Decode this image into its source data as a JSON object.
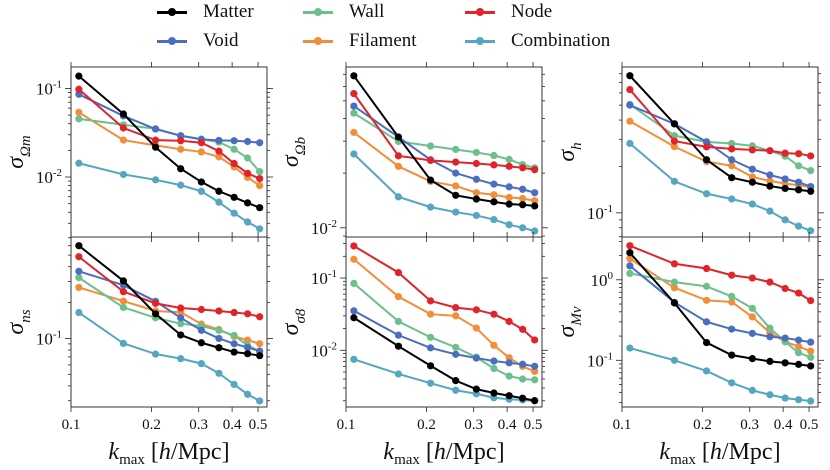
{
  "chart_data": {
    "type": "line",
    "layout": "2x3 grid of log-log panels, shared x-axis per column",
    "legend": {
      "placement": "top-center",
      "entries": [
        "Matter",
        "Void",
        "Wall",
        "Filament",
        "Node",
        "Combination"
      ]
    },
    "colors": {
      "Matter": "#000000",
      "Void": "#4a6fc0",
      "Wall": "#6dbf8c",
      "Filament": "#f28e3a",
      "Node": "#e0242a",
      "Combination": "#55a6c0"
    },
    "xlabel": "k_max [h/Mpc]",
    "xscale": "log",
    "xlim": [
      0.1,
      0.54
    ],
    "xticks": [
      0.1,
      0.2,
      0.3,
      0.4,
      0.5
    ],
    "xtick_labels": [
      "0.1",
      "0.2",
      "0.3",
      "0.4",
      "0.5"
    ],
    "x": [
      0.107,
      0.157,
      0.207,
      0.257,
      0.307,
      0.357,
      0.407,
      0.457,
      0.507
    ],
    "panels": [
      {
        "id": "omega_m",
        "ylabel_base": "σ",
        "ylabel_sub": "Ωm",
        "yscale": "log",
        "ylim": [
          0.0021,
          0.175
        ],
        "yticks": [
          {
            "value": 0.1,
            "label_base": "10",
            "label_exp": "-1"
          },
          {
            "value": 0.01,
            "label_base": "10",
            "label_exp": "-2"
          }
        ],
        "series": [
          {
            "name": "Matter",
            "values": [
              0.138,
              0.0515,
              0.0217,
              0.0124,
              0.0088,
              0.0069,
              0.0059,
              0.0051,
              0.0045
            ]
          },
          {
            "name": "Void",
            "values": [
              0.086,
              0.049,
              0.0348,
              0.0292,
              0.0266,
              0.0259,
              0.0257,
              0.0252,
              0.0244
            ]
          },
          {
            "name": "Wall",
            "values": [
              0.0454,
              0.0389,
              0.0351,
              0.0294,
              0.0268,
              0.0248,
              0.0206,
              0.0164,
              0.0115
            ]
          },
          {
            "name": "Filament",
            "values": [
              0.0538,
              0.0261,
              0.0228,
              0.0206,
              0.0192,
              0.0169,
              0.013,
              0.0099,
              0.008
            ]
          },
          {
            "name": "Node",
            "values": [
              0.098,
              0.0358,
              0.0261,
              0.0257,
              0.0244,
              0.0196,
              0.0142,
              0.011,
              0.0096
            ]
          },
          {
            "name": "Combination",
            "values": [
              0.0143,
              0.0107,
              0.0093,
              0.0081,
              0.0069,
              0.0052,
              0.0039,
              0.0031,
              0.0026
            ]
          }
        ]
      },
      {
        "id": "omega_b",
        "ylabel_base": "σ",
        "ylabel_sub": "Ωb",
        "yscale": "log",
        "ylim": [
          0.0089,
          0.0768
        ],
        "yticks": [
          {
            "value": 0.01,
            "label_base": "10",
            "label_exp": "-2"
          }
        ],
        "series": [
          {
            "name": "Matter",
            "values": [
              0.0687,
              0.0316,
              0.0183,
              0.0151,
              0.0144,
              0.0139,
              0.0135,
              0.0134,
              0.0132
            ]
          },
          {
            "name": "Void",
            "values": [
              0.0468,
              0.0316,
              0.0237,
              0.02,
              0.0185,
              0.0174,
              0.0168,
              0.0163,
              0.0156
            ]
          },
          {
            "name": "Wall",
            "values": [
              0.0428,
              0.0299,
              0.0282,
              0.027,
              0.026,
              0.025,
              0.0238,
              0.0223,
              0.0214
            ]
          },
          {
            "name": "Filament",
            "values": [
              0.0335,
              0.0218,
              0.018,
              0.017,
              0.0156,
              0.0152,
              0.0147,
              0.0145,
              0.0141
            ]
          },
          {
            "name": "Node",
            "values": [
              0.0548,
              0.0249,
              0.0235,
              0.023,
              0.0226,
              0.0222,
              0.0218,
              0.0214,
              0.0209
            ]
          },
          {
            "name": "Combination",
            "values": [
              0.0255,
              0.0148,
              0.013,
              0.0122,
              0.0117,
              0.0111,
              0.0104,
              0.01,
              0.0096
            ]
          }
        ]
      },
      {
        "id": "h",
        "ylabel_base": "σ",
        "ylabel_sub": "h",
        "yscale": "log",
        "ylim": [
          0.0697,
          0.884
        ],
        "yticks": [
          {
            "value": 0.1,
            "label_base": "10",
            "label_exp": "-1"
          }
        ],
        "series": [
          {
            "name": "Matter",
            "values": [
              0.776,
              0.378,
              0.221,
              0.169,
              0.158,
              0.149,
              0.144,
              0.141,
              0.138
            ]
          },
          {
            "name": "Void",
            "values": [
              0.5,
              0.378,
              0.289,
              0.221,
              0.192,
              0.176,
              0.166,
              0.158,
              0.148
            ]
          },
          {
            "name": "Wall",
            "values": [
              0.505,
              0.317,
              0.289,
              0.282,
              0.272,
              0.253,
              0.233,
              0.202,
              0.188
            ]
          },
          {
            "name": "Filament",
            "values": [
              0.393,
              0.269,
              0.215,
              0.202,
              0.171,
              0.161,
              0.155,
              0.151,
              0.147
            ]
          },
          {
            "name": "Node",
            "values": [
              0.631,
              0.292,
              0.268,
              0.26,
              0.256,
              0.253,
              0.244,
              0.242,
              0.234
            ]
          },
          {
            "name": "Combination",
            "values": [
              0.282,
              0.16,
              0.133,
              0.123,
              0.114,
              0.1026,
              0.0901,
              0.082,
              0.0766
            ]
          }
        ]
      },
      {
        "id": "n_s",
        "ylabel_base": "σ",
        "ylabel_sub": "ns",
        "yscale": "log",
        "ylim": [
          0.0266,
          0.71
        ],
        "yticks": [
          {
            "value": 0.1,
            "label_base": "10",
            "label_exp": "-1"
          }
        ],
        "series": [
          {
            "name": "Matter",
            "values": [
              0.6,
              0.304,
              0.161,
              0.107,
              0.092,
              0.0836,
              0.0769,
              0.0745,
              0.0717
            ]
          },
          {
            "name": "Void",
            "values": [
              0.366,
              0.28,
              0.205,
              0.149,
              0.117,
              0.1,
              0.0903,
              0.0841,
              0.0784
            ]
          },
          {
            "name": "Wall",
            "values": [
              0.324,
              0.182,
              0.149,
              0.133,
              0.127,
              0.117,
              0.106,
              0.0875,
              0.078
            ]
          },
          {
            "name": "Filament",
            "values": [
              0.268,
              0.206,
              0.17,
              0.166,
              0.132,
              0.119,
              0.104,
              0.0968,
              0.0903
            ]
          },
          {
            "name": "Node",
            "values": [
              0.485,
              0.247,
              0.197,
              0.18,
              0.175,
              0.17,
              0.165,
              0.161,
              0.152
            ]
          },
          {
            "name": "Combination",
            "values": [
              0.165,
              0.0909,
              0.074,
              0.0677,
              0.0615,
              0.051,
              0.0411,
              0.034,
              0.0299
            ]
          }
        ]
      },
      {
        "id": "sigma_8",
        "ylabel_base": "σ",
        "ylabel_sub": "σ8",
        "yscale": "log",
        "ylim": [
          0.00164,
          0.37
        ],
        "yticks": [
          {
            "value": 0.1,
            "label_base": "10",
            "label_exp": "-1"
          },
          {
            "value": 0.01,
            "label_base": "10",
            "label_exp": "-2"
          }
        ],
        "series": [
          {
            "name": "Matter",
            "values": [
              0.0282,
              0.0114,
              0.0061,
              0.0038,
              0.0029,
              0.00256,
              0.00235,
              0.00217,
              0.00201
            ]
          },
          {
            "name": "Void",
            "values": [
              0.0352,
              0.0162,
              0.0108,
              0.0088,
              0.0078,
              0.0071,
              0.0067,
              0.0064,
              0.006
            ]
          },
          {
            "name": "Wall",
            "values": [
              0.0843,
              0.0251,
              0.0151,
              0.011,
              0.008,
              0.0056,
              0.0044,
              0.004,
              0.0039
            ]
          },
          {
            "name": "Filament",
            "values": [
              0.182,
              0.0553,
              0.0316,
              0.03,
              0.0203,
              0.0117,
              0.0079,
              0.006,
              0.0051
            ]
          },
          {
            "name": "Node",
            "values": [
              0.278,
              0.119,
              0.0483,
              0.039,
              0.0363,
              0.0316,
              0.0251,
              0.0195,
              0.0139
            ]
          },
          {
            "name": "Combination",
            "values": [
              0.0075,
              0.0047,
              0.0035,
              0.0028,
              0.0025,
              0.0022,
              0.0021,
              0.00205,
              0.00199
            ]
          }
        ]
      },
      {
        "id": "M_nu",
        "ylabel_base": "σ",
        "ylabel_sub": "Mν",
        "yscale": "log",
        "ylim": [
          0.0263,
          3.4
        ],
        "yticks": [
          {
            "value": 1,
            "label_base": "10",
            "label_exp": "0"
          },
          {
            "value": 0.1,
            "label_base": "10",
            "label_exp": "-1"
          }
        ],
        "series": [
          {
            "name": "Matter",
            "values": [
              2.17,
              0.515,
              0.166,
              0.116,
              0.105,
              0.097,
              0.093,
              0.089,
              0.085
            ]
          },
          {
            "name": "Void",
            "values": [
              1.49,
              0.525,
              0.3,
              0.244,
              0.216,
              0.196,
              0.189,
              0.178,
              0.168
            ]
          },
          {
            "name": "Wall",
            "values": [
              1.2,
              0.936,
              0.828,
              0.622,
              0.442,
              0.251,
              0.17,
              0.124,
              0.109
            ]
          },
          {
            "name": "Filament",
            "values": [
              1.83,
              0.797,
              0.556,
              0.53,
              0.346,
              0.22,
              0.17,
              0.148,
              0.13
            ]
          },
          {
            "name": "Node",
            "values": [
              2.65,
              1.58,
              1.38,
              1.14,
              1.05,
              0.936,
              0.781,
              0.684,
              0.551
            ]
          },
          {
            "name": "Combination",
            "values": [
              0.142,
              0.1,
              0.0738,
              0.0525,
              0.0423,
              0.0373,
              0.034,
              0.0324,
              0.0312
            ]
          }
        ]
      }
    ]
  }
}
